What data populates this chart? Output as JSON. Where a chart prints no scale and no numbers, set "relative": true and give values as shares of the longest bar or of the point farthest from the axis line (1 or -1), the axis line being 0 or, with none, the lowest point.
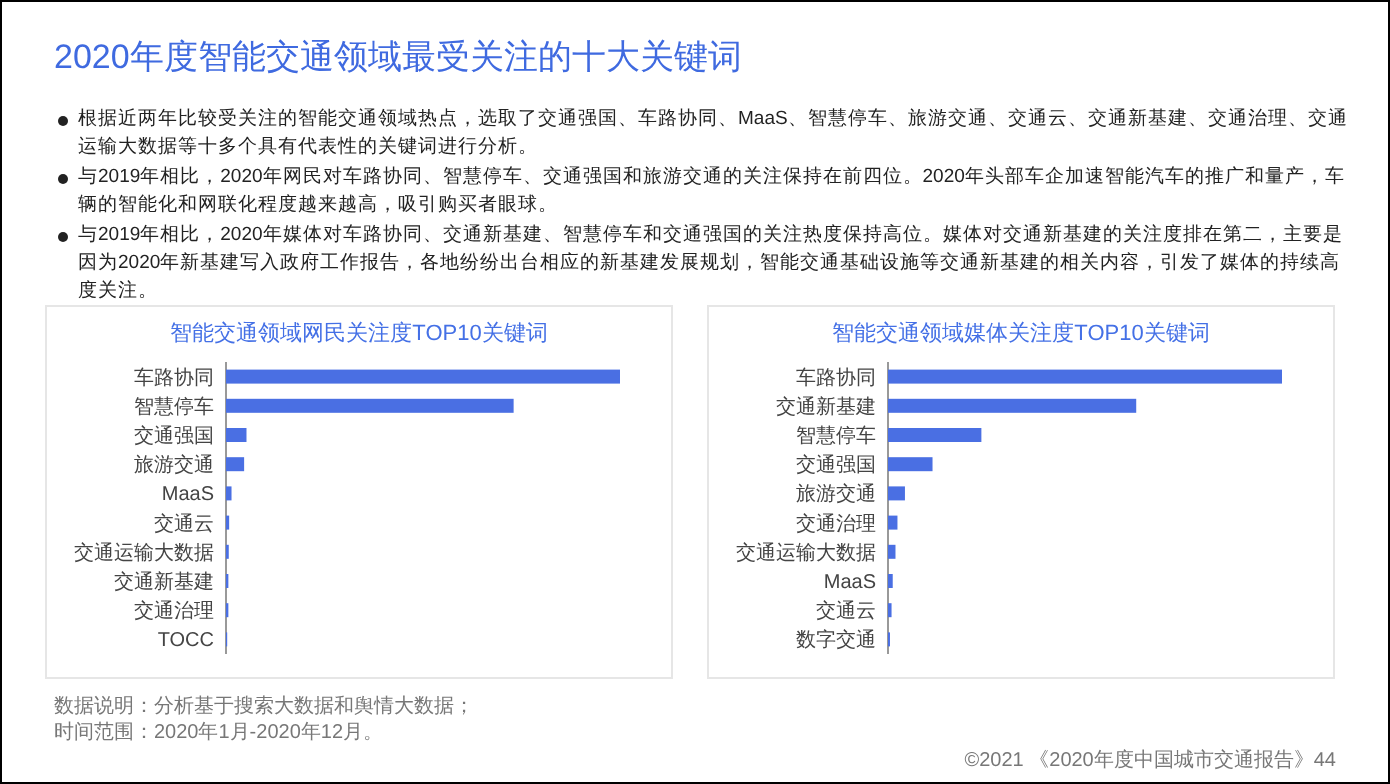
{
  "chart_data": [
    {
      "type": "other",
      "title": "2020年度智能交通领域最受关注的十大关键词",
      "annotations": [
        "根据近两年比较受关注的智能交通领域热点，选取了交通强国、车路协同、MaaS、智慧停车、旅游交通、交通云、交通新基建、交通治理、交通运输大数据等十多个具有代表性的关键词进行分析。",
        "与2019年相比，2020年网民对车路协同、智慧停车、交通强国和旅游交通的关注保持在前四位。2020年头部车企加速智能汽车的推广和量产，车辆的智能化和网联化程度越来越高，吸引购买者眼球。",
        "与2019年相比，2020年媒体对车路协同、交通新基建、智慧停车和交通强国的关注热度保持高位。媒体对交通新基建的关注度排在第二，主要是因为2020年新基建写入政府工作报告，各地纷纷出台相应的新基建发展规划，智能交通基础设施等交通新基建的相关内容，引发了媒体的持续高度关注。"
      ]
    },
    {
      "type": "bar",
      "orientation": "horizontal",
      "relative": true,
      "title": "智能交通领域网民关注度TOP10关键词",
      "categories": [
        "车路协同",
        "智慧停车",
        "交通强国",
        "旅游交通",
        "MaaS",
        "交通云",
        "交通运输大数据",
        "交通新基建",
        "交通治理",
        "TOCC"
      ],
      "series": [
        {
          "color": "#4a6fe3",
          "values": [
            1,
            0.73,
            0.052,
            0.046,
            0.014,
            0.008,
            0.007,
            0.006,
            0.006,
            0.003
          ]
        }
      ]
    },
    {
      "type": "bar",
      "orientation": "horizontal",
      "relative": true,
      "title": "智能交通领域媒体关注度TOP10关键词",
      "categories": [
        "车路协同",
        "交通新基建",
        "智慧停车",
        "交通强国",
        "旅游交通",
        "交通治理",
        "交通运输大数据",
        "MaaS",
        "交通云",
        "数字交通"
      ],
      "series": [
        {
          "color": "#4a6fe3",
          "values": [
            1,
            0.63,
            0.237,
            0.113,
            0.043,
            0.024,
            0.019,
            0.012,
            0.009,
            0.005
          ]
        }
      ]
    },
    {
      "type": "other",
      "annotations": [
        "数据说明：分析基于搜索大数据和舆情大数据；",
        "时间范围：2020年1月-2020年12月。",
        "©2021 《2020年度中国城市交通报告》44"
      ]
    }
  ]
}
